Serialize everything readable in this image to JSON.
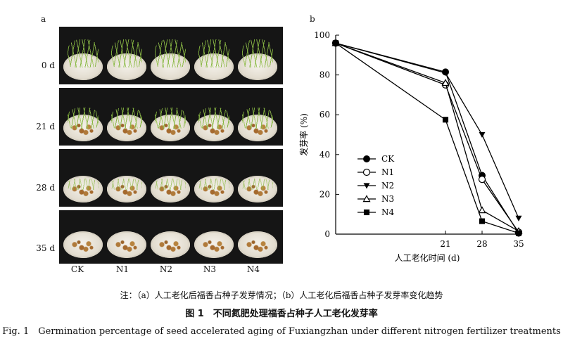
{
  "panel_a": {
    "label": "a",
    "rows": [
      "0 d",
      "21 d",
      "28 d",
      "35 d"
    ],
    "treatments": [
      "CK",
      "N1",
      "N2",
      "N3",
      "N4"
    ]
  },
  "panel_b": {
    "label": "b"
  },
  "chart_data": {
    "type": "line",
    "x": [
      0,
      21,
      28,
      35
    ],
    "xticks": [
      "21",
      "28",
      "35"
    ],
    "yticks": [
      "0",
      "20",
      "40",
      "60",
      "80",
      "100"
    ],
    "xlim": [
      0,
      35
    ],
    "ylim": [
      0,
      100
    ],
    "xlabel": "人工老化时间 (d)",
    "ylabel": "发芽率 (%)",
    "legend_position": "left-middle",
    "series": [
      {
        "name": "CK",
        "marker": "circle-filled",
        "values": [
          96,
          81.5,
          29.5,
          0.5
        ]
      },
      {
        "name": "N1",
        "marker": "circle-open",
        "values": [
          96,
          75,
          27.5,
          1
        ]
      },
      {
        "name": "N2",
        "marker": "triangle-down-filled",
        "values": [
          96,
          81,
          50,
          8
        ]
      },
      {
        "name": "N3",
        "marker": "triangle-up-open",
        "values": [
          96,
          76,
          12,
          1.5
        ]
      },
      {
        "name": "N4",
        "marker": "square-filled",
        "values": [
          96,
          57.5,
          6.5,
          0.5
        ]
      }
    ]
  },
  "captions": {
    "note": "注：（a）人工老化后福香占种子发芽情况；（b）人工老化后福香占种子发芽率变化趋势",
    "title_cn": "图 1　不同氮肥处理福香占种子人工老化发芽率",
    "title_en": "Fig. 1　Germination percentage of seed accelerated aging of Fuxiangzhan under different nitrogen fertilizer treatments"
  }
}
